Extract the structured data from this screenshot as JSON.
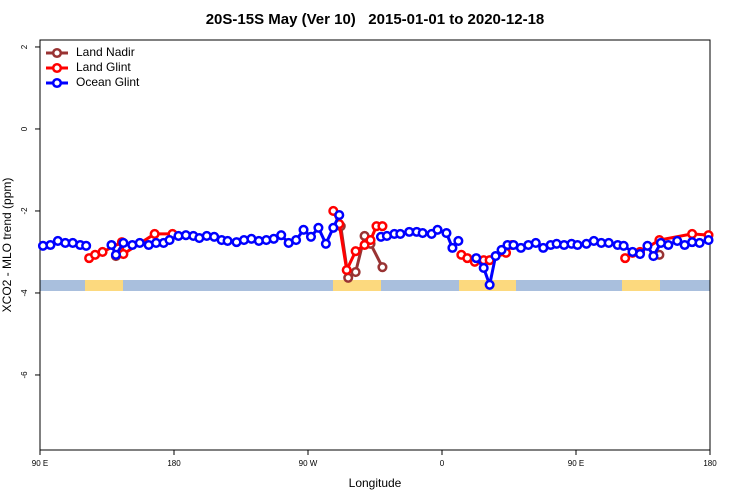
{
  "chart_data": {
    "type": "line",
    "title": "20S-15S May (Ver 10)   2015-01-01 to 2020-12-18",
    "x_label": "Longitude",
    "y_label": "XCO2 - MLO trend (ppm)",
    "xlim": [
      90,
      540
    ],
    "xticks": [
      {
        "value": 90,
        "label": "90 E"
      },
      180,
      {
        "value": 270,
        "label": "90 W"
      },
      {
        "value": 360,
        "label": "0"
      },
      {
        "value": 450,
        "label": "90 E"
      },
      {
        "value": 540,
        "label": "180"
      }
    ],
    "ylim": [
      -7.83,
      2.17
    ],
    "yticks": [
      -6,
      -4,
      -2,
      0,
      2
    ],
    "legend": "top-left",
    "series": [
      {
        "name": "Land Nadir",
        "color": "#993333",
        "x": [
          141,
          null,
          292,
          297,
          302,
          308,
          312,
          320,
          null,
          506
        ],
        "values": [
          -3.1,
          null,
          -2.37,
          -3.63,
          -3.49,
          -2.61,
          -2.8,
          -3.37,
          null,
          -3.07
        ]
      },
      {
        "name": "Land Glint",
        "color": "#ff0000",
        "x": [
          123,
          127,
          132,
          145,
          146,
          167,
          179,
          null,
          287,
          291,
          296,
          302,
          308,
          312,
          316,
          320,
          null,
          373,
          377,
          382,
          388,
          392,
          403,
          407,
          null,
          483,
          488,
          493,
          506,
          528,
          539
        ],
        "values": [
          -3.15,
          -3.07,
          -3.0,
          -2.76,
          -3.05,
          -2.56,
          -2.56,
          null,
          -2.0,
          -2.32,
          -3.44,
          -2.98,
          -2.83,
          -2.71,
          -2.37,
          -2.37,
          null,
          -3.07,
          -3.15,
          -3.24,
          -3.2,
          -3.2,
          -3.02,
          -2.83,
          null,
          -3.15,
          -3.02,
          -3.0,
          -2.71,
          -2.56,
          -2.59
        ]
      },
      {
        "name": "Ocean Glint",
        "color": "#0000ff",
        "x": [
          92,
          97,
          102,
          107,
          112,
          117,
          121,
          null,
          138,
          141,
          146,
          152,
          157,
          163,
          168,
          173,
          177,
          183,
          188,
          193,
          197,
          202,
          207,
          212,
          216,
          222,
          227,
          232,
          237,
          242,
          247,
          252,
          257,
          262,
          267,
          272,
          277,
          282,
          287,
          291,
          null,
          319,
          323,
          328,
          332,
          338,
          343,
          347,
          353,
          357,
          363,
          367,
          371,
          null,
          383,
          388,
          392,
          396,
          400,
          404,
          408,
          413,
          418,
          423,
          428,
          433,
          437,
          442,
          447,
          451,
          457,
          462,
          467,
          472,
          478,
          482,
          488,
          493,
          498,
          502,
          507,
          512,
          518,
          523,
          528,
          533,
          539
        ],
        "values": [
          -2.85,
          -2.83,
          -2.73,
          -2.78,
          -2.78,
          -2.83,
          -2.85,
          null,
          -2.83,
          -3.07,
          -2.78,
          -2.83,
          -2.78,
          -2.83,
          -2.78,
          -2.78,
          -2.71,
          -2.61,
          -2.59,
          -2.61,
          -2.66,
          -2.61,
          -2.63,
          -2.71,
          -2.73,
          -2.76,
          -2.71,
          -2.68,
          -2.73,
          -2.71,
          -2.68,
          -2.59,
          -2.78,
          -2.71,
          -2.46,
          -2.63,
          -2.41,
          -2.8,
          -2.41,
          -2.1,
          null,
          -2.63,
          -2.61,
          -2.56,
          -2.56,
          -2.51,
          -2.51,
          -2.54,
          -2.56,
          -2.46,
          -2.54,
          -2.9,
          -2.73,
          null,
          -3.15,
          -3.39,
          -3.8,
          -3.1,
          -2.95,
          -2.83,
          -2.83,
          -2.9,
          -2.83,
          -2.78,
          -2.9,
          -2.83,
          -2.8,
          -2.83,
          -2.8,
          -2.83,
          -2.8,
          -2.73,
          -2.78,
          -2.78,
          -2.83,
          -2.85,
          -3.0,
          -3.05,
          -2.85,
          -3.1,
          -2.78,
          -2.83,
          -2.73,
          -2.83,
          -2.76,
          -2.78,
          -2.71
        ]
      }
    ]
  }
}
